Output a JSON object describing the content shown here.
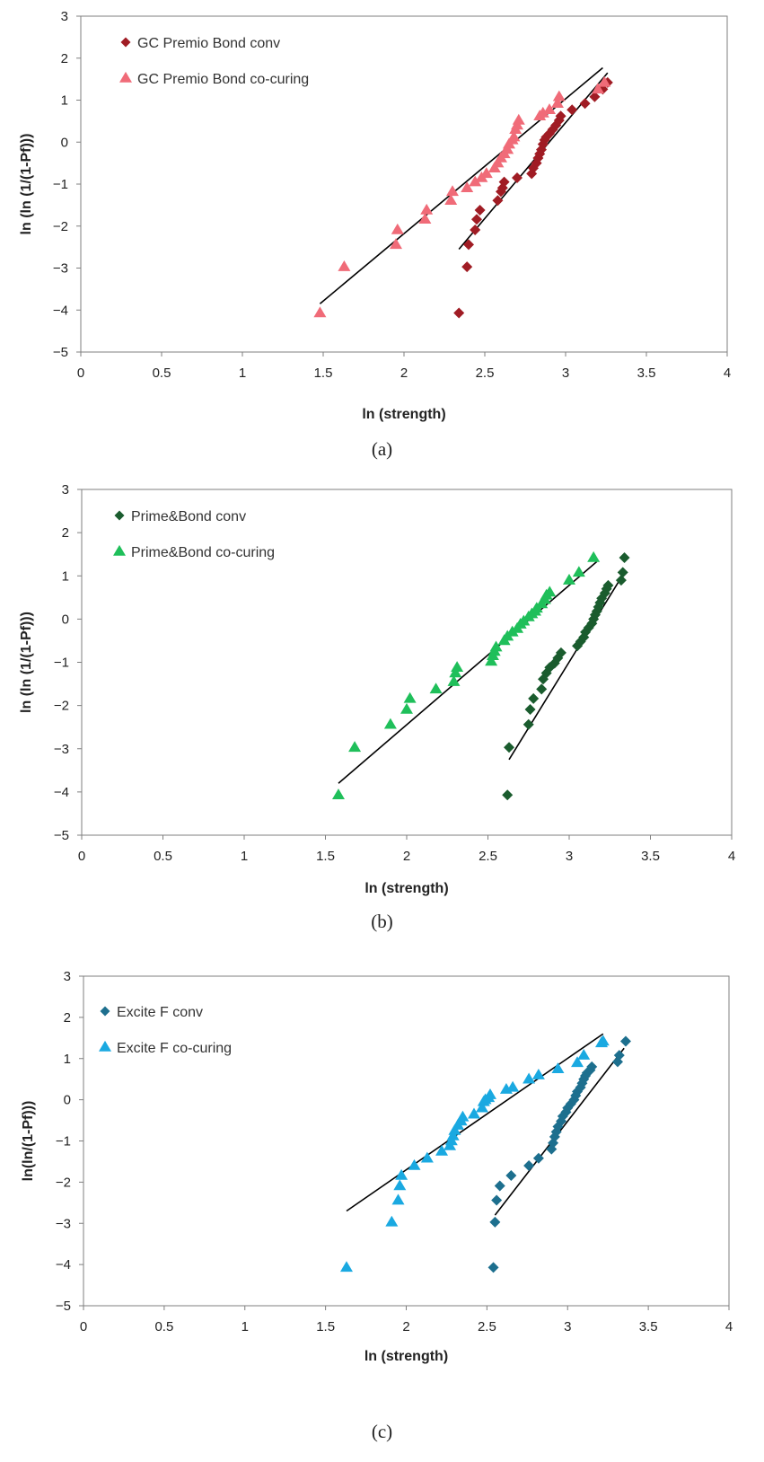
{
  "chart_data": [
    {
      "type": "scatter",
      "caption": "(a)",
      "xlabel": "ln (strength)",
      "ylabel": "ln (ln (1/(1-Pf)))",
      "xlim": [
        0,
        4
      ],
      "ylim": [
        -5,
        3
      ],
      "xticks": [
        "0",
        "0.5",
        "1",
        "1.5",
        "2",
        "2.5",
        "3",
        "3.5",
        "4"
      ],
      "yticks": [
        "3",
        "2",
        "1",
        "0",
        "−1",
        "−2",
        "−3",
        "−4",
        "−5"
      ],
      "legend_position": "top-left",
      "series": [
        {
          "name": "GC Premio Bond conv",
          "marker": "diamond",
          "color": "#a01c24",
          "x": [
            2.34,
            2.39,
            2.4,
            2.44,
            2.45,
            2.47,
            2.58,
            2.6,
            2.61,
            2.62,
            2.7,
            2.79,
            2.8,
            2.82,
            2.83,
            2.84,
            2.85,
            2.86,
            2.87,
            2.88,
            2.9,
            2.92,
            2.94,
            2.96,
            2.97,
            3.04,
            3.12,
            3.18,
            3.23,
            3.26
          ],
          "y": [
            -4.07,
            -2.97,
            -2.44,
            -2.09,
            -1.84,
            -1.62,
            -1.39,
            -1.18,
            -1.09,
            -0.95,
            -0.85,
            -0.75,
            -0.62,
            -0.5,
            -0.38,
            -0.28,
            -0.18,
            -0.05,
            0.05,
            0.12,
            0.2,
            0.3,
            0.4,
            0.52,
            0.62,
            0.77,
            0.92,
            1.08,
            1.26,
            1.42
          ]
        },
        {
          "name": "GC Premio Bond co-curing",
          "marker": "triangle",
          "color": "#f06b78",
          "x": [
            1.48,
            1.63,
            1.95,
            1.96,
            2.13,
            2.14,
            2.29,
            2.3,
            2.39,
            2.44,
            2.48,
            2.51,
            2.56,
            2.58,
            2.6,
            2.62,
            2.64,
            2.65,
            2.67,
            2.68,
            2.69,
            2.7,
            2.71,
            2.84,
            2.86,
            2.9,
            2.95,
            2.96,
            3.2,
            3.24
          ],
          "y": [
            -4.07,
            -2.97,
            -2.44,
            -2.09,
            -1.84,
            -1.62,
            -1.39,
            -1.18,
            -1.09,
            -0.95,
            -0.85,
            -0.75,
            -0.62,
            -0.5,
            -0.38,
            -0.28,
            -0.18,
            -0.05,
            0.05,
            0.12,
            0.3,
            0.4,
            0.52,
            0.62,
            0.69,
            0.77,
            0.92,
            1.08,
            1.26,
            1.42
          ]
        }
      ],
      "trendlines": [
        {
          "series": "GC Premio Bond conv",
          "x": [
            2.34,
            3.26
          ],
          "y": [
            -2.55,
            1.65
          ]
        },
        {
          "series": "GC Premio Bond co-curing",
          "x": [
            1.48,
            3.23
          ],
          "y": [
            -3.85,
            1.77
          ]
        }
      ]
    },
    {
      "type": "scatter",
      "caption": "(b)",
      "xlabel": "ln (strength)",
      "ylabel": "ln (ln (1/(1-Pf)))",
      "xlim": [
        0,
        4
      ],
      "ylim": [
        -5,
        3
      ],
      "xticks": [
        "0",
        "0.5",
        "1",
        "1.5",
        "2",
        "2.5",
        "3",
        "3.5",
        "4"
      ],
      "yticks": [
        "3",
        "2",
        "1",
        "0",
        "−1",
        "−2",
        "−3",
        "−4",
        "−5"
      ],
      "legend_position": "top-left",
      "series": [
        {
          "name": "Prime&Bond conv",
          "marker": "diamond",
          "color": "#1a5c2e",
          "x": [
            2.62,
            2.63,
            2.75,
            2.76,
            2.78,
            2.83,
            2.84,
            2.86,
            2.88,
            2.91,
            2.93,
            2.95,
            3.05,
            3.07,
            3.09,
            3.1,
            3.12,
            3.14,
            3.15,
            3.16,
            3.17,
            3.18,
            3.19,
            3.2,
            3.22,
            3.23,
            3.24,
            3.32,
            3.33,
            3.34
          ],
          "y": [
            -4.07,
            -2.97,
            -2.44,
            -2.09,
            -1.84,
            -1.62,
            -1.39,
            -1.25,
            -1.12,
            -1.02,
            -0.9,
            -0.78,
            -0.62,
            -0.52,
            -0.42,
            -0.3,
            -0.2,
            -0.1,
            0.0,
            0.1,
            0.18,
            0.28,
            0.38,
            0.48,
            0.6,
            0.7,
            0.78,
            0.9,
            1.08,
            1.42
          ]
        },
        {
          "name": "Prime&Bond co-curing",
          "marker": "triangle",
          "color": "#1fbf5a",
          "x": [
            1.58,
            1.68,
            1.9,
            2.0,
            2.02,
            2.18,
            2.29,
            2.3,
            2.31,
            2.52,
            2.53,
            2.54,
            2.55,
            2.6,
            2.62,
            2.65,
            2.68,
            2.7,
            2.72,
            2.75,
            2.77,
            2.79,
            2.8,
            2.83,
            2.85,
            2.86,
            2.88,
            3.0,
            3.06,
            3.15
          ],
          "y": [
            -4.07,
            -2.97,
            -2.44,
            -2.09,
            -1.84,
            -1.62,
            -1.45,
            -1.25,
            -1.12,
            -0.98,
            -0.85,
            -0.75,
            -0.65,
            -0.5,
            -0.4,
            -0.3,
            -0.22,
            -0.12,
            -0.05,
            0.05,
            0.12,
            0.18,
            0.25,
            0.35,
            0.45,
            0.55,
            0.62,
            0.9,
            1.08,
            1.42
          ]
        }
      ],
      "trendlines": [
        {
          "series": "Prime&Bond conv",
          "x": [
            2.63,
            3.31
          ],
          "y": [
            -3.25,
            0.9
          ]
        },
        {
          "series": "Prime&Bond co-curing",
          "x": [
            1.58,
            3.17
          ],
          "y": [
            -3.8,
            1.33
          ]
        }
      ]
    },
    {
      "type": "scatter",
      "caption": "(c)",
      "xlabel": "ln (strength)",
      "ylabel": "ln(ln/(1-Pf)))",
      "xlim": [
        0,
        4
      ],
      "ylim": [
        -5,
        3
      ],
      "xticks": [
        "0",
        "0.5",
        "1",
        "1.5",
        "2",
        "2.5",
        "3",
        "3.5",
        "4"
      ],
      "yticks": [
        "3",
        "2",
        "1",
        "0",
        "−1",
        "−2",
        "−3",
        "−4",
        "−5"
      ],
      "legend_position": "top-left",
      "series": [
        {
          "name": "Excite F conv",
          "marker": "diamond",
          "color": "#1d6f8e",
          "x": [
            2.54,
            2.55,
            2.56,
            2.58,
            2.65,
            2.76,
            2.82,
            2.9,
            2.91,
            2.92,
            2.93,
            2.94,
            2.96,
            2.97,
            2.99,
            3.0,
            3.02,
            3.04,
            3.05,
            3.06,
            3.08,
            3.09,
            3.1,
            3.11,
            3.12,
            3.14,
            3.15,
            3.31,
            3.32,
            3.36
          ],
          "y": [
            -4.07,
            -2.97,
            -2.44,
            -2.09,
            -1.84,
            -1.6,
            -1.42,
            -1.2,
            -1.05,
            -0.9,
            -0.78,
            -0.65,
            -0.52,
            -0.4,
            -0.3,
            -0.2,
            -0.1,
            0.0,
            0.1,
            0.2,
            0.3,
            0.4,
            0.5,
            0.58,
            0.65,
            0.72,
            0.8,
            0.92,
            1.08,
            1.42
          ]
        },
        {
          "name": "Excite F co-curing",
          "marker": "triangle",
          "color": "#1aa9e1",
          "x": [
            1.63,
            1.91,
            1.95,
            1.96,
            1.97,
            2.05,
            2.13,
            2.22,
            2.27,
            2.28,
            2.29,
            2.3,
            2.32,
            2.34,
            2.35,
            2.42,
            2.47,
            2.48,
            2.49,
            2.51,
            2.52,
            2.62,
            2.66,
            2.76,
            2.82,
            2.94,
            3.06,
            3.1,
            3.21,
            3.22
          ],
          "y": [
            -4.07,
            -2.97,
            -2.44,
            -2.09,
            -1.84,
            -1.6,
            -1.42,
            -1.25,
            -1.12,
            -1.0,
            -0.88,
            -0.75,
            -0.62,
            -0.52,
            -0.42,
            -0.35,
            -0.2,
            -0.05,
            0.0,
            0.05,
            0.12,
            0.25,
            0.3,
            0.5,
            0.6,
            0.75,
            0.9,
            1.08,
            1.38,
            1.42
          ]
        }
      ],
      "trendlines": [
        {
          "series": "Excite F conv",
          "x": [
            2.55,
            3.35
          ],
          "y": [
            -2.8,
            1.25
          ]
        },
        {
          "series": "Excite F co-curing",
          "x": [
            1.63,
            3.22
          ],
          "y": [
            -2.7,
            1.6
          ]
        }
      ]
    }
  ]
}
